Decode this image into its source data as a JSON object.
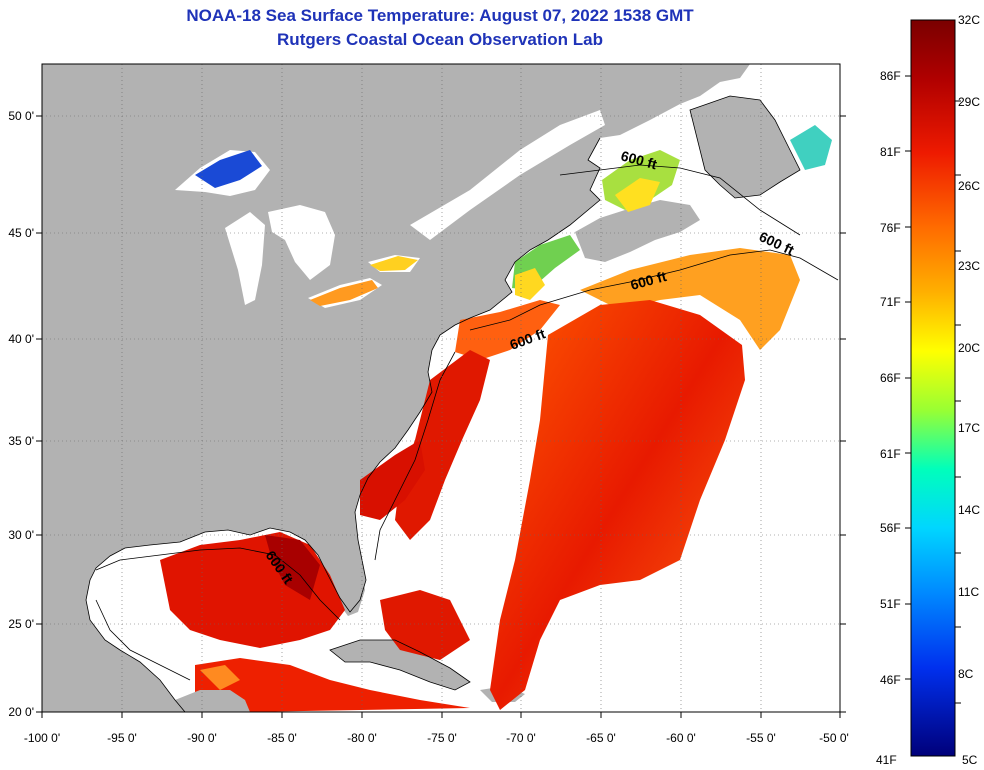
{
  "title_line1": "NOAA-18 Sea Surface Temperature:  August 07, 2022 1538 GMT",
  "title_line2": "Rutgers Coastal Ocean Observation Lab",
  "map": {
    "lon_range": [
      -100,
      -50
    ],
    "lat_range": [
      20,
      52.4
    ],
    "lon_ticks": [
      "-100 0'",
      "-95 0'",
      "-90 0'",
      "-85 0'",
      "-80 0'",
      "-75 0'",
      "-70 0'",
      "-65 0'",
      "-60 0'",
      "-55 0'",
      "-50 0'"
    ],
    "lat_ticks": [
      "20 0'",
      "25 0'",
      "30 0'",
      "35 0'",
      "40 0'",
      "45 0'",
      "50 0'"
    ],
    "land_color": "#b2b2b2",
    "no_data_color": "#ffffff",
    "gridlines": true,
    "contour_labels": [
      "600 ft",
      "600 ft",
      "600 ft",
      "600 ft",
      "600 ft"
    ]
  },
  "colorbar": {
    "celsius_labels": [
      "32C",
      "29C",
      "26C",
      "23C",
      "20C",
      "17C",
      "14C",
      "11C",
      "8C",
      "5C"
    ],
    "fahrenheit_labels": [
      "86F",
      "81F",
      "76F",
      "71F",
      "66F",
      "61F",
      "56F",
      "51F",
      "46F",
      "41F"
    ],
    "colors": [
      "#7a0000",
      "#cc0000",
      "#ff3300",
      "#ff8800",
      "#ffcc00",
      "#ffff00",
      "#99ff33",
      "#00ffcc",
      "#00ccff",
      "#0066ff",
      "#0000cc",
      "#00007a"
    ]
  }
}
